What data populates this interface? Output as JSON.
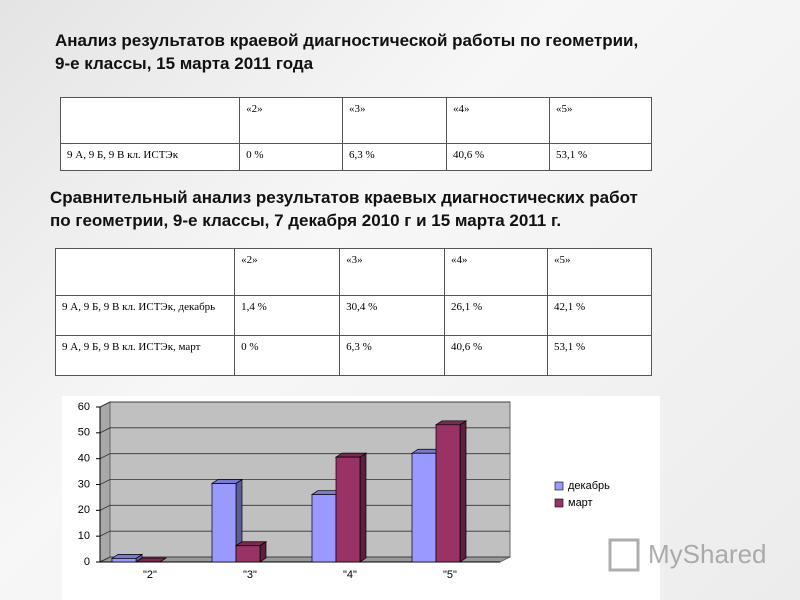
{
  "title": [
    "Анализ результатов краевой диагностической работы по геометрии,",
    "9-е классы, 15 марта 2011 года"
  ],
  "table1": {
    "header": [
      "«2»",
      "«3»",
      "«4»",
      "«5»"
    ],
    "rows": [
      [
        "9 А, 9 Б, 9 В кл. ИСТЭк",
        "0 %",
        "6,3 %",
        "40,6 %",
        "53,1 %"
      ]
    ]
  },
  "subtitle": [
    "Сравнительный анализ результатов краевых диагностических работ",
    "по геометрии, 9-е классы, 7 декабря 2010 г и 15 марта 2011 г."
  ],
  "table2": {
    "header": [
      "«2»",
      "«3»",
      "«4»",
      "«5»"
    ],
    "rows": [
      [
        "9 А, 9 Б, 9 В кл. ИСТЭк, декабрь",
        "1,4 %",
        "30,4 %",
        "26,1 %",
        "42,1 %"
      ],
      [
        "9 А, 9 Б, 9 В кл. ИСТЭк, март",
        "0 %",
        "6,3 %",
        "40,6 %",
        "53,1 %"
      ]
    ]
  },
  "chart_data": {
    "type": "bar",
    "categories": [
      "\"2\"",
      "\"3\"",
      "\"4\"",
      "\"5\""
    ],
    "series": [
      {
        "name": "декабрь",
        "color": "#9999ff",
        "values": [
          1.4,
          30.4,
          26.1,
          42.1
        ]
      },
      {
        "name": "март",
        "color": "#993366",
        "values": [
          0,
          6.3,
          40.6,
          53.1
        ]
      }
    ],
    "ylim": [
      0,
      60
    ],
    "yticks": [
      0,
      10,
      20,
      30,
      40,
      50,
      60
    ],
    "grid": true,
    "legend": "right"
  },
  "watermark": "MyShared"
}
